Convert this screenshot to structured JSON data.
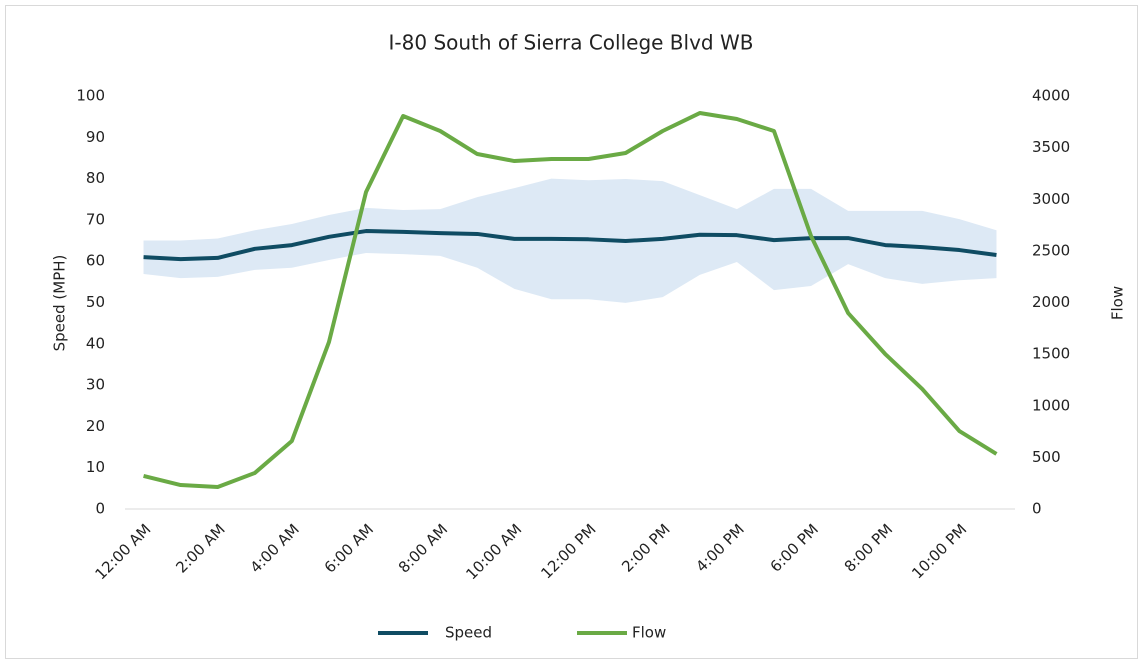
{
  "chart_data": {
    "type": "line",
    "title": "I-80 South of Sierra College Blvd WB",
    "ylabel": "Speed (MPH)",
    "y2label": "Flow",
    "categories": [
      "12:00 AM",
      null,
      "2:00 AM",
      null,
      "4:00 AM",
      null,
      "6:00 AM",
      null,
      "8:00 AM",
      null,
      "10:00 AM",
      null,
      "12:00 PM",
      null,
      "2:00 PM",
      null,
      "4:00 PM",
      null,
      "6:00 PM",
      null,
      "8:00 PM",
      null,
      "10:00 PM",
      null
    ],
    "series": [
      {
        "name": "Speed",
        "color": "#0f4c63",
        "values": [
          61.0,
          60.5,
          60.8,
          63.0,
          63.9,
          65.9,
          67.3,
          67.1,
          66.8,
          66.6,
          65.4,
          65.4,
          65.3,
          64.9,
          65.4,
          66.4,
          66.3,
          65.1,
          65.6,
          65.6,
          63.9,
          63.4,
          62.7,
          61.5
        ]
      },
      {
        "name": "Flow",
        "color": "#6aaa45",
        "axis": "y2",
        "values": [
          320,
          232,
          213,
          349,
          659,
          1617,
          3070,
          3806,
          3661,
          3438,
          3370,
          3390,
          3390,
          3448,
          3661,
          3835,
          3777,
          3661,
          2644,
          1898,
          1501,
          1162,
          755,
          533
        ]
      }
    ],
    "band": {
      "color": "#dde9f5",
      "upper": [
        65.0,
        65.0,
        65.5,
        67.5,
        69.0,
        71.2,
        72.9,
        72.4,
        72.6,
        75.5,
        77.7,
        80.0,
        79.6,
        79.9,
        79.4,
        76.0,
        72.6,
        77.5,
        77.5,
        72.2,
        72.2,
        72.2,
        70.2,
        67.5
      ],
      "lower": [
        56.9,
        55.9,
        56.2,
        57.9,
        58.4,
        60.3,
        62.0,
        61.7,
        61.3,
        58.4,
        53.3,
        50.8,
        50.8,
        49.9,
        51.3,
        56.7,
        59.8,
        53.0,
        54.0,
        59.3,
        55.9,
        54.5,
        55.4,
        55.9
      ]
    },
    "ylim": [
      0,
      100
    ],
    "yticks": [
      0,
      10,
      20,
      30,
      40,
      50,
      60,
      70,
      80,
      90,
      100
    ],
    "y2lim": [
      0,
      4000
    ],
    "y2ticks": [
      0,
      500,
      1000,
      1500,
      2000,
      2500,
      3000,
      3500,
      4000
    ],
    "legend": "bottom"
  }
}
